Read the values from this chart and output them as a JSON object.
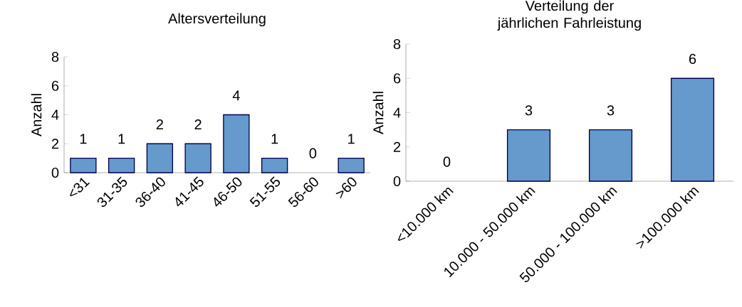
{
  "chart_data": [
    {
      "type": "bar",
      "title": "Altersverteilung",
      "ylabel": "Anzahl",
      "categories": [
        "<31",
        "31-35",
        "36-40",
        "41-45",
        "46-50",
        "51-55",
        "56-60",
        ">60"
      ],
      "values": [
        1,
        1,
        2,
        2,
        4,
        1,
        0,
        1
      ],
      "color": "#6699cc",
      "ylim": [
        0,
        8
      ],
      "yticks": [
        0,
        2,
        4,
        6,
        8
      ],
      "data_labels": true
    },
    {
      "type": "bar",
      "title": "Verteilung der jährlichen Fahrleistung",
      "ylabel": "Anzahl",
      "categories": [
        "<10.000 km",
        "10.000 - 50.000 km",
        "50.000 - 100.000 km",
        ">100.000 km"
      ],
      "values": [
        0,
        3,
        3,
        6
      ],
      "color": "#6699cc",
      "ylim": [
        0,
        8
      ],
      "yticks": [
        0,
        2,
        4,
        6,
        8
      ],
      "data_labels": true
    }
  ]
}
